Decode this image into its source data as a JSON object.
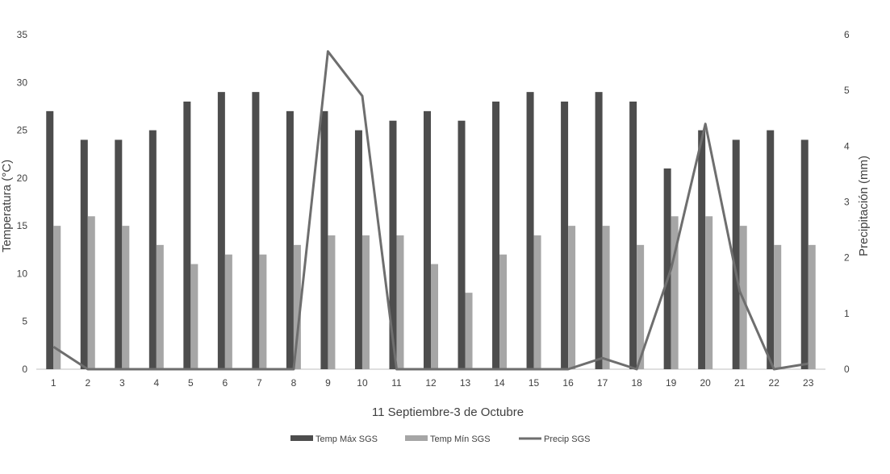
{
  "chart_data": {
    "type": "bar",
    "categories": [
      "1",
      "2",
      "3",
      "4",
      "5",
      "6",
      "7",
      "8",
      "9",
      "10",
      "11",
      "12",
      "13",
      "14",
      "15",
      "16",
      "17",
      "18",
      "19",
      "20",
      "21",
      "22",
      "23"
    ],
    "xlabel": "11 Septiembre-3 de Octubre",
    "ylabel": "Temperatura (°C)",
    "y2label": "Precipitación (mm)",
    "ylim": [
      0,
      35
    ],
    "y2lim": [
      0,
      6
    ],
    "yticks": [
      0,
      5,
      10,
      15,
      20,
      25,
      30,
      35
    ],
    "y2ticks": [
      0,
      1,
      2,
      3,
      4,
      5,
      6
    ],
    "grid": false,
    "legend_position": "bottom",
    "series": [
      {
        "name": "Temp Máx SGS",
        "kind": "bar",
        "axis": "left",
        "color": "#4d4d4d",
        "values": [
          27,
          24,
          24,
          25,
          28,
          29,
          29,
          27,
          27,
          25,
          26,
          27,
          26,
          28,
          29,
          28,
          29,
          28,
          21,
          25,
          24,
          25,
          24
        ]
      },
      {
        "name": "Temp Mín SGS",
        "kind": "bar",
        "axis": "left",
        "color": "#a6a6a6",
        "values": [
          15,
          16,
          15,
          13,
          11,
          12,
          12,
          13,
          14,
          14,
          14,
          11,
          8,
          12,
          14,
          15,
          15,
          13,
          16,
          16,
          15,
          13,
          13
        ]
      },
      {
        "name": "Precip SGS",
        "kind": "line",
        "axis": "right",
        "color": "#6e6e6e",
        "values": [
          0.4,
          0,
          0,
          0,
          0,
          0,
          0,
          0,
          5.7,
          4.9,
          0,
          0,
          0,
          0,
          0,
          0,
          0.2,
          0,
          1.8,
          4.4,
          1.4,
          0,
          0.1
        ]
      }
    ]
  }
}
